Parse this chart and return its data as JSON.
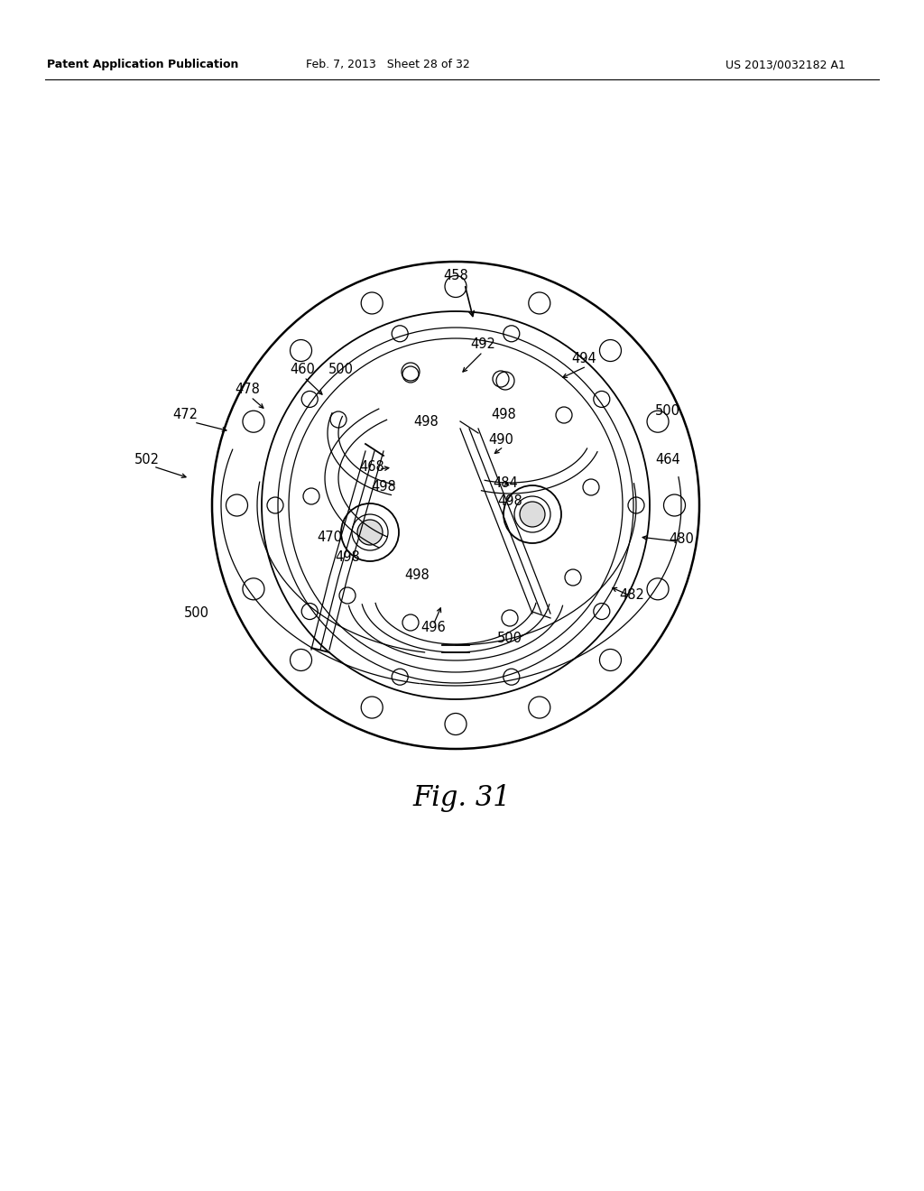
{
  "bg_color": "#ffffff",
  "line_color": "#000000",
  "header_left": "Patent Application Publication",
  "header_mid": "Feb. 7, 2013   Sheet 28 of 32",
  "header_right": "US 2013/0032182 A1",
  "fig_label": "Fig. 31",
  "page_width": 10.24,
  "page_height": 13.2,
  "dpi": 100
}
